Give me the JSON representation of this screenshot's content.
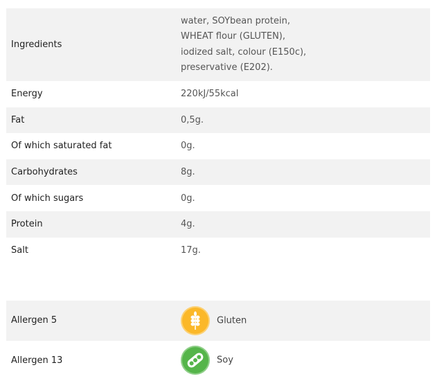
{
  "nutrition": [
    {
      "label": "Ingredients",
      "value_lines": [
        "water, SOYbean protein,",
        "WHEAT flour (GLUTEN),",
        "iodized salt, colour (E150c),",
        "preservative (E202)."
      ]
    },
    {
      "label": "Energy",
      "value": "220kJ/55kcal"
    },
    {
      "label": "Fat",
      "value": "0,5g."
    },
    {
      "label": "Of which saturated fat",
      "value": "0g."
    },
    {
      "label": "Carbohydrates",
      "value": "8g."
    },
    {
      "label": "Of which sugars",
      "value": "0g."
    },
    {
      "label": "Protein",
      "value": "4g."
    },
    {
      "label": "Salt",
      "value": "17g."
    }
  ],
  "allergens": [
    {
      "label": "Allergen 5",
      "name": "Gluten",
      "icon": "wheat-icon",
      "color": "#fbb829"
    },
    {
      "label": "Allergen 13",
      "name": "Soy",
      "icon": "soybean-icon",
      "color": "#55b54a"
    }
  ]
}
